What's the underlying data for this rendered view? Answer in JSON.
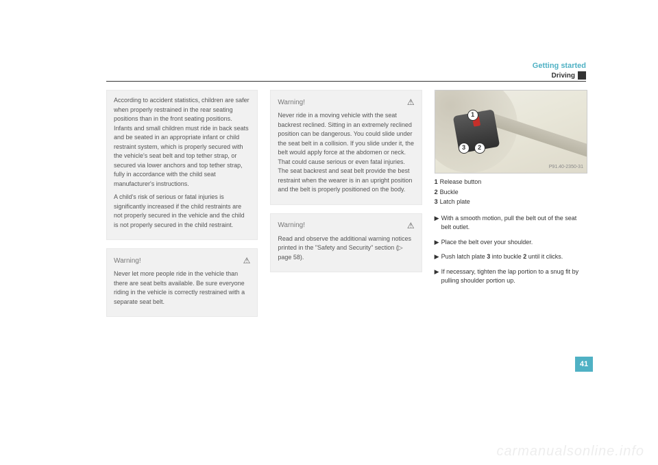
{
  "header": {
    "title": "Getting started",
    "subtitle": "Driving"
  },
  "col1": {
    "box1_p1": "According to accident statistics, children are safer when properly restrained in the rear seating positions than in the front seating positions. Infants and small children must ride in back seats and be seated in an appropriate infant or child restraint system, which is properly secured with the vehicle's seat belt and top tether strap, or secured via lower anchors and top tether strap, fully in accordance with the child seat manufacturer's instructions.",
    "box1_p2": "A child's risk of serious or fatal injuries is significantly increased if the child restraints are not properly secured in the vehicle and the child is not properly secured in the child restraint.",
    "warn_label": "Warning!",
    "warn_body": "Never let more people ride in the vehicle than there are seat belts available. Be sure everyone riding in the vehicle is correctly restrained with a separate seat belt."
  },
  "col2": {
    "warn_label": "Warning!",
    "warn1_body": "Never ride in a moving vehicle with the seat backrest reclined. Sitting in an extremely reclined position can be dangerous. You could slide under the seat belt in a collision. If you slide under it, the belt would apply force at the abdomen or neck. That could cause serious or even fatal injuries. The seat backrest and seat belt provide the best restraint when the wearer is in an upright position and the belt is properly positioned on the body.",
    "warn2_body": "Read and observe the additional warning notices printed in the \"Safety and Security\" section (▷ page 58)."
  },
  "col3": {
    "fig_ref": "P91.40-2350-31",
    "legend": {
      "l1_num": "1",
      "l1_text": "Release button",
      "l2_num": "2",
      "l2_text": "Buckle",
      "l3_num": "3",
      "l3_text": "Latch plate"
    },
    "callouts": {
      "c1": "1",
      "c2": "2",
      "c3": "3"
    },
    "steps": {
      "s1": "With a smooth motion, pull the belt out of the seat belt outlet.",
      "s2": "Place the belt over your shoulder.",
      "s3a": "Push latch plate ",
      "s3_bold1": "3",
      "s3b": " into buckle ",
      "s3_bold2": "2",
      "s3c": " until it clicks.",
      "s4": "If necessary, tighten the lap portion to a snug fit by pulling shoulder portion up."
    }
  },
  "page_number": "41",
  "watermark": "carmanualsonline.info",
  "colors": {
    "accent": "#4fb1c4",
    "box_bg": "#f1f1f1",
    "text_muted": "#555"
  }
}
